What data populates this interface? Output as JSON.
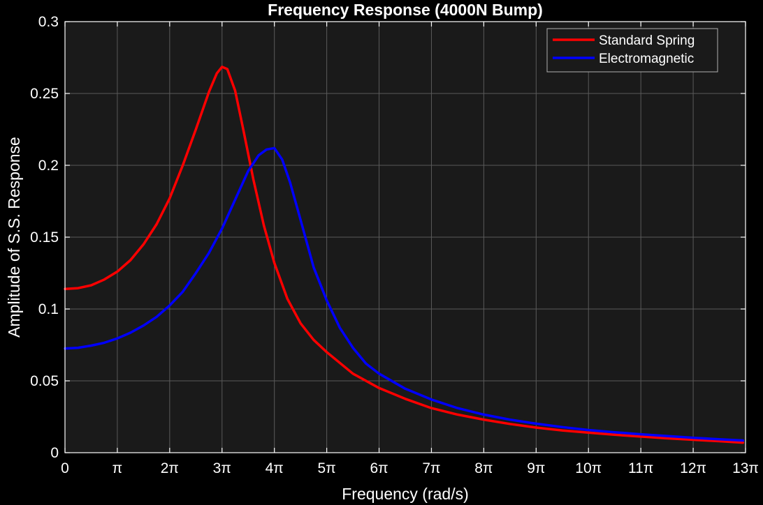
{
  "chart_data": {
    "type": "line",
    "title": "Frequency Response (4000N Bump)",
    "xlabel": "Frequency (rad/s)",
    "ylabel": "Amplitude of S.S. Response",
    "xlim": [
      0,
      13
    ],
    "ylim": [
      0,
      0.3
    ],
    "x_unit_label": "π",
    "x_tick_values": [
      0,
      1,
      2,
      3,
      4,
      5,
      6,
      7,
      8,
      9,
      10,
      11,
      12,
      13
    ],
    "x_tick_labels": [
      "0",
      "π",
      "2π",
      "3π",
      "4π",
      "5π",
      "6π",
      "7π",
      "8π",
      "9π",
      "10π",
      "11π",
      "12π",
      "13π"
    ],
    "y_tick_values": [
      0,
      0.05,
      0.1,
      0.15,
      0.2,
      0.25,
      0.3
    ],
    "y_tick_labels": [
      "0",
      "0.05",
      "0.1",
      "0.15",
      "0.2",
      "0.25",
      "0.3"
    ],
    "grid": true,
    "legend_position": "top-right",
    "colors": {
      "background": "#000000",
      "plot_area": "#1a1a1a",
      "grid": "#5a5a5a",
      "axes": "#ffffff",
      "text": "#ffffff",
      "legend_bg": "#1a1a1a",
      "legend_border": "#b0b0b0"
    },
    "series": [
      {
        "name": "Standard Spring",
        "color": "#ff0000",
        "x": [
          0,
          0.25,
          0.5,
          0.75,
          1.0,
          1.25,
          1.5,
          1.75,
          2.0,
          2.25,
          2.5,
          2.75,
          2.9,
          3.0,
          3.1,
          3.25,
          3.4,
          3.6,
          3.8,
          4.0,
          4.25,
          4.5,
          4.75,
          5.0,
          5.5,
          6.0,
          6.5,
          7.0,
          7.5,
          8.0,
          8.5,
          9.0,
          9.5,
          10.0,
          10.5,
          11.0,
          11.5,
          12.0,
          12.5,
          12.95
        ],
        "y": [
          0.114,
          0.1145,
          0.1165,
          0.1205,
          0.126,
          0.134,
          0.145,
          0.159,
          0.177,
          0.2,
          0.225,
          0.251,
          0.264,
          0.2685,
          0.267,
          0.252,
          0.226,
          0.19,
          0.158,
          0.132,
          0.107,
          0.09,
          0.0785,
          0.07,
          0.055,
          0.045,
          0.0375,
          0.031,
          0.0265,
          0.023,
          0.02,
          0.0175,
          0.0155,
          0.014,
          0.0125,
          0.0112,
          0.01,
          0.009,
          0.008,
          0.007
        ]
      },
      {
        "name": "Electromagnetic",
        "color": "#0000ff",
        "x": [
          0,
          0.25,
          0.5,
          0.75,
          1.0,
          1.25,
          1.5,
          1.75,
          2.0,
          2.25,
          2.5,
          2.75,
          3.0,
          3.25,
          3.5,
          3.7,
          3.85,
          4.0,
          4.15,
          4.3,
          4.5,
          4.75,
          5.0,
          5.25,
          5.5,
          5.75,
          6.0,
          6.5,
          7.0,
          7.5,
          8.0,
          8.5,
          9.0,
          9.5,
          10.0,
          10.5,
          11.0,
          11.5,
          12.0,
          12.5,
          12.95
        ],
        "y": [
          0.0725,
          0.073,
          0.0745,
          0.0765,
          0.0795,
          0.0835,
          0.0885,
          0.0945,
          0.1025,
          0.112,
          0.125,
          0.139,
          0.156,
          0.176,
          0.196,
          0.207,
          0.211,
          0.212,
          0.204,
          0.188,
          0.162,
          0.129,
          0.106,
          0.087,
          0.073,
          0.062,
          0.055,
          0.0445,
          0.037,
          0.031,
          0.0265,
          0.023,
          0.0202,
          0.0178,
          0.0158,
          0.0142,
          0.0128,
          0.0116,
          0.0104,
          0.0093,
          0.0085
        ]
      }
    ]
  }
}
